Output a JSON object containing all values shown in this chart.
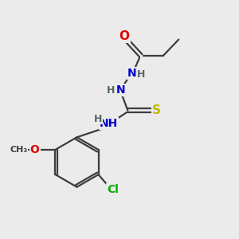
{
  "background_color": "#ebebeb",
  "bond_color": "#3d3d3d",
  "atom_colors": {
    "O": "#dd0000",
    "N": "#0000cc",
    "S": "#bbbb00",
    "Cl": "#00aa00",
    "C": "#3d3d3d",
    "H": "#556666"
  },
  "figsize": [
    3.0,
    3.0
  ],
  "dpi": 100,
  "bond_lw": 1.6,
  "font_size": 10
}
